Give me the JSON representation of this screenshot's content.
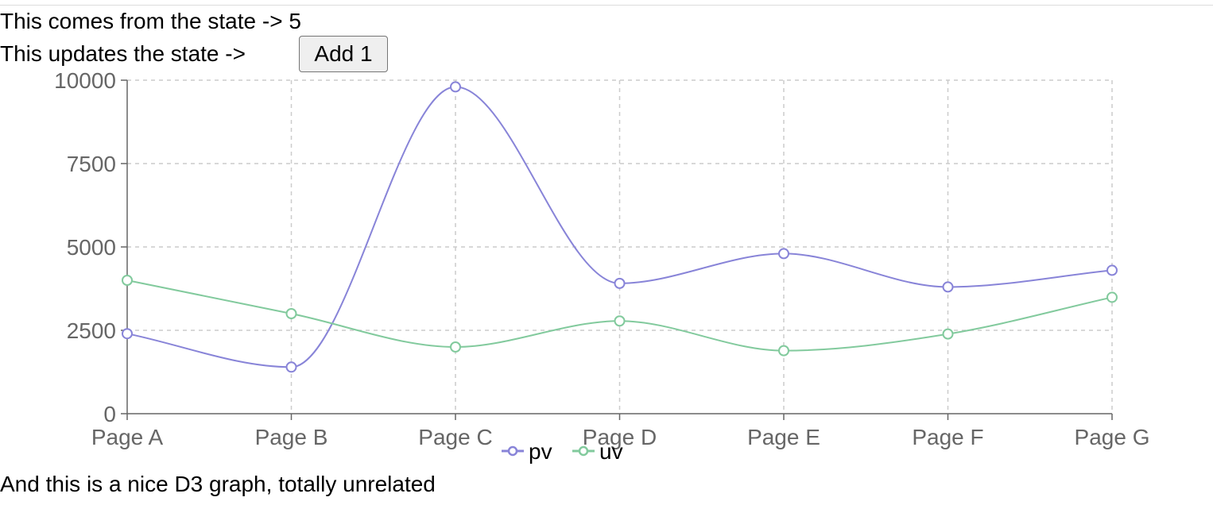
{
  "page": {
    "state_text": "This comes from the state -> ",
    "state_value": "5",
    "update_text": "This updates the state -> ",
    "button_label": "Add 1",
    "footer_text": "And this is a nice D3 graph, totally unrelated"
  },
  "chart_data": {
    "type": "line",
    "categories": [
      "Page A",
      "Page B",
      "Page C",
      "Page D",
      "Page E",
      "Page F",
      "Page G"
    ],
    "series": [
      {
        "name": "pv",
        "color": "#8884d8",
        "values": [
          2400,
          1398,
          9800,
          3908,
          4800,
          3800,
          4300
        ]
      },
      {
        "name": "uv",
        "color": "#82ca9d",
        "values": [
          4000,
          3000,
          2000,
          2780,
          1890,
          2390,
          3490
        ]
      }
    ],
    "y_ticks": [
      "0",
      "2500",
      "5000",
      "7500",
      "10000"
    ],
    "ylim": [
      0,
      10000
    ],
    "grid": true,
    "legend_position": "bottom-center",
    "curve": "monotone"
  }
}
